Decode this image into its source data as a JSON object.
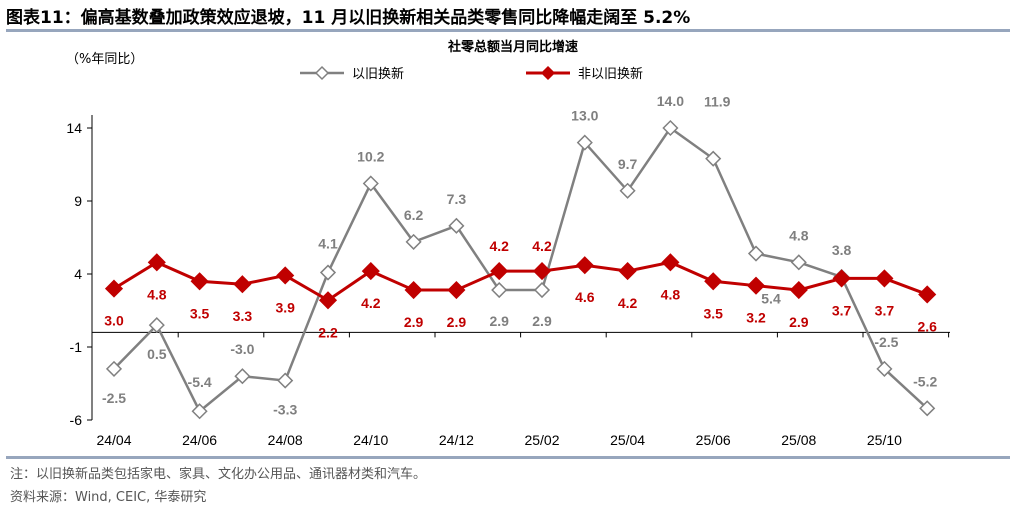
{
  "title": "图表11：偏高基数叠加政策效应退坡，11 月以旧换新相关品类零售同比降幅走阔至 5.2%",
  "footer": {
    "note": "注：以旧换新品类包括家电、家具、文化办公用品、通讯器材类和汽车。",
    "source": "资料来源：Wind, CEIC, 华泰研究"
  },
  "chart_data": {
    "type": "line",
    "title": "社零总额当月同比增速",
    "ylabel": "（%年同比）",
    "ylim": [
      -6,
      14
    ],
    "yticks": [
      14,
      9,
      4,
      -1,
      -6
    ],
    "legend_position": "top-center",
    "grid": false,
    "categories": [
      "24/04",
      "24/05",
      "24/06",
      "24/07",
      "24/08",
      "24/09",
      "24/10",
      "24/11",
      "24/12",
      "25/01",
      "25/02",
      "25/03",
      "25/04",
      "25/05",
      "25/06",
      "25/07",
      "25/08",
      "25/09",
      "25/10",
      "25/11"
    ],
    "xtick_labels": [
      "24/04",
      "24/06",
      "24/08",
      "24/10",
      "24/12",
      "25/02",
      "25/04",
      "25/06",
      "25/08",
      "25/10"
    ],
    "series": [
      {
        "name": "以旧换新",
        "color": "#808080",
        "marker": "hollow-diamond",
        "values": [
          -2.5,
          0.5,
          -5.4,
          -3.0,
          -3.3,
          4.1,
          10.2,
          6.2,
          7.3,
          2.9,
          2.9,
          13.0,
          9.7,
          14.0,
          11.9,
          5.4,
          4.8,
          3.8,
          -2.5,
          -5.2
        ]
      },
      {
        "name": "非以旧换新",
        "color": "#c00000",
        "marker": "filled-diamond",
        "values": [
          3.0,
          4.8,
          3.5,
          3.3,
          3.9,
          2.2,
          4.2,
          2.9,
          2.9,
          4.2,
          4.2,
          4.6,
          4.2,
          4.8,
          3.5,
          3.2,
          2.9,
          3.7,
          3.7,
          2.6
        ]
      }
    ]
  }
}
